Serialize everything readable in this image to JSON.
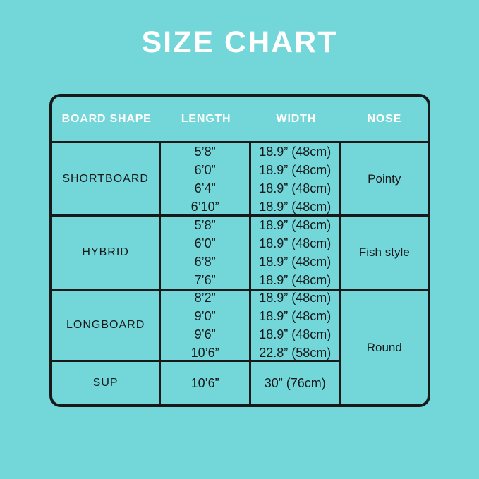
{
  "page": {
    "title": "SIZE CHART",
    "background_color": "#73d7d9",
    "border_color": "#17191b",
    "title_color": "#ffffff"
  },
  "table": {
    "headers": [
      "BOARD SHAPE",
      "LENGTH",
      "WIDTH",
      "NOSE"
    ],
    "rows": [
      {
        "shape": "SHORTBOARD",
        "lengths": [
          "5’8”",
          "6’0”",
          "6’4”",
          "6’10”"
        ],
        "widths": [
          "18.9” (48cm)",
          "18.9” (48cm)",
          "18.9” (48cm)",
          "18.9” (48cm)"
        ],
        "nose": "Pointy"
      },
      {
        "shape": "HYBRID",
        "lengths": [
          "5’8”",
          "6’0”",
          "6’8”",
          "7’6”"
        ],
        "widths": [
          "18.9” (48cm)",
          "18.9” (48cm)",
          "18.9” (48cm)",
          "18.9” (48cm)"
        ],
        "nose": "Fish style"
      },
      {
        "shape": "LONGBOARD",
        "lengths": [
          "8’2”",
          "9’0”",
          "9’6”",
          "10’6”"
        ],
        "widths": [
          "18.9” (48cm)",
          "18.9” (48cm)",
          "18.9” (48cm)",
          "22.8” (58cm)"
        ],
        "nose": "Round"
      },
      {
        "shape": "SUP",
        "lengths": [
          "10’6”"
        ],
        "widths": [
          "30” (76cm)"
        ],
        "nose": "Round"
      }
    ]
  },
  "chart_data": {
    "type": "table",
    "title": "SIZE CHART",
    "columns": [
      "BOARD SHAPE",
      "LENGTH",
      "WIDTH",
      "NOSE"
    ],
    "rows": [
      [
        "SHORTBOARD",
        "5’8”",
        "18.9” (48cm)",
        "Pointy"
      ],
      [
        "SHORTBOARD",
        "6’0”",
        "18.9” (48cm)",
        "Pointy"
      ],
      [
        "SHORTBOARD",
        "6’4”",
        "18.9” (48cm)",
        "Pointy"
      ],
      [
        "SHORTBOARD",
        "6’10”",
        "18.9” (48cm)",
        "Pointy"
      ],
      [
        "HYBRID",
        "5’8”",
        "18.9” (48cm)",
        "Fish style"
      ],
      [
        "HYBRID",
        "6’0”",
        "18.9” (48cm)",
        "Fish style"
      ],
      [
        "HYBRID",
        "6’8”",
        "18.9” (48cm)",
        "Fish style"
      ],
      [
        "HYBRID",
        "7’6”",
        "18.9” (48cm)",
        "Fish style"
      ],
      [
        "LONGBOARD",
        "8’2”",
        "18.9” (48cm)",
        "Round"
      ],
      [
        "LONGBOARD",
        "9’0”",
        "18.9” (48cm)",
        "Round"
      ],
      [
        "LONGBOARD",
        "9’6”",
        "18.9” (48cm)",
        "Round"
      ],
      [
        "LONGBOARD",
        "10’6”",
        "22.8” (58cm)",
        "Round"
      ],
      [
        "SUP",
        "10’6”",
        "30” (76cm)",
        "Round"
      ]
    ],
    "layout": {
      "merged_cells": "NOSE value Round spans LONGBOARD and SUP rows",
      "header_style": "white bold on turquoise, no vertical dividers in header row",
      "grid": "black 3px inner lines, 4px rounded outer border"
    }
  }
}
